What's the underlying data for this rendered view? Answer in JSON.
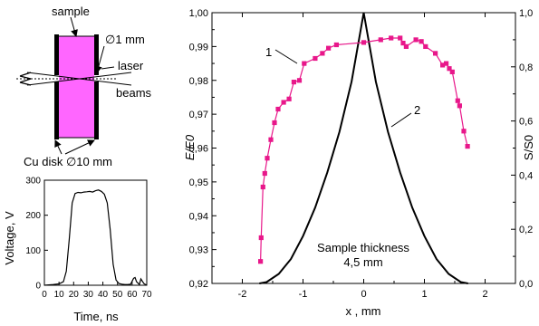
{
  "schematic": {
    "sample_label": "sample",
    "aperture_label": "∅1 mm",
    "laser_label": "laser",
    "beams_label": "beams",
    "disk_label": "Cu disk ∅10 mm",
    "colors": {
      "sample_fill": "#ff66ff",
      "disk": "#000000"
    }
  },
  "chart_data": [
    {
      "type": "line",
      "panel": "voltage-pulse",
      "xlabel": "Time, ns",
      "ylabel": "Voltage, V",
      "xlim": [
        0,
        70
      ],
      "ylim": [
        0,
        300
      ],
      "xticks": [
        "0",
        "10",
        "20",
        "30",
        "40",
        "50",
        "60",
        "70"
      ],
      "yticks": [
        "0",
        "100",
        "200",
        "300"
      ],
      "series": [
        {
          "color": "#000000",
          "x": [
            0,
            6,
            10,
            13,
            15,
            17,
            19,
            21,
            23,
            25,
            27,
            29,
            31,
            33,
            35,
            37,
            39,
            41,
            43,
            45,
            47,
            49,
            51,
            53,
            55,
            57,
            59,
            61,
            62,
            63,
            65,
            66,
            68,
            70
          ],
          "y": [
            0,
            2,
            4,
            10,
            40,
            130,
            235,
            262,
            265,
            264,
            266,
            267,
            268,
            266,
            270,
            272,
            268,
            260,
            235,
            160,
            60,
            15,
            5,
            3,
            2,
            2,
            3,
            20,
            22,
            10,
            2,
            18,
            5,
            0
          ]
        }
      ]
    },
    {
      "type": "line",
      "panel": "main",
      "xlabel": "x , mm",
      "ylabel": "E/E0",
      "y2label": "S/S0",
      "xlim": [
        -2.5,
        2.5
      ],
      "ylim": [
        0.92,
        1.0
      ],
      "y2lim": [
        0,
        1.0
      ],
      "xticks": [
        "-2",
        "-1",
        "0",
        "1",
        "2"
      ],
      "yticks": [
        "0,92",
        "0,93",
        "0,94",
        "0,95",
        "0,96",
        "0,97",
        "0,98",
        "0,99",
        "1,00"
      ],
      "y2ticks": [
        "0,0",
        "0,2",
        "0,4",
        "0,6",
        "0,8",
        "1,0"
      ],
      "annotation": {
        "line1": "Sample thickness",
        "line2": "4,5 mm"
      },
      "series": [
        {
          "name": "1",
          "color": "#e8178a",
          "marker": "square",
          "axis": "left",
          "x": [
            -1.7,
            -1.69,
            -1.66,
            -1.63,
            -1.59,
            -1.53,
            -1.47,
            -1.41,
            -1.32,
            -1.23,
            -1.15,
            -1.06,
            -0.98,
            -0.8,
            -0.68,
            -0.58,
            -0.45,
            0.0,
            0.28,
            0.45,
            0.6,
            0.65,
            0.7,
            0.86,
            0.95,
            1.02,
            1.18,
            1.3,
            1.36,
            1.41,
            1.46,
            1.55,
            1.58,
            1.65,
            1.71
          ],
          "y": [
            0.9265,
            0.9335,
            0.9485,
            0.9525,
            0.957,
            0.9625,
            0.9675,
            0.9715,
            0.9735,
            0.9745,
            0.9795,
            0.98,
            0.985,
            0.9865,
            0.988,
            0.9895,
            0.9905,
            0.9912,
            0.992,
            0.9925,
            0.9925,
            0.991,
            0.99,
            0.992,
            0.9915,
            0.99,
            0.988,
            0.9845,
            0.985,
            0.9835,
            0.9825,
            0.974,
            0.9725,
            0.965,
            0.9605
          ]
        },
        {
          "name": "2",
          "color": "#000000",
          "axis": "right",
          "x": [
            -1.72,
            -1.6,
            -1.4,
            -1.2,
            -1.0,
            -0.8,
            -0.6,
            -0.4,
            -0.2,
            0.0,
            0.2,
            0.4,
            0.6,
            0.8,
            1.0,
            1.2,
            1.4,
            1.6,
            1.72
          ],
          "y": [
            0.0,
            0.005,
            0.035,
            0.09,
            0.175,
            0.28,
            0.41,
            0.56,
            0.745,
            1.0,
            0.745,
            0.56,
            0.41,
            0.28,
            0.175,
            0.09,
            0.035,
            0.005,
            0.0
          ]
        }
      ]
    }
  ]
}
